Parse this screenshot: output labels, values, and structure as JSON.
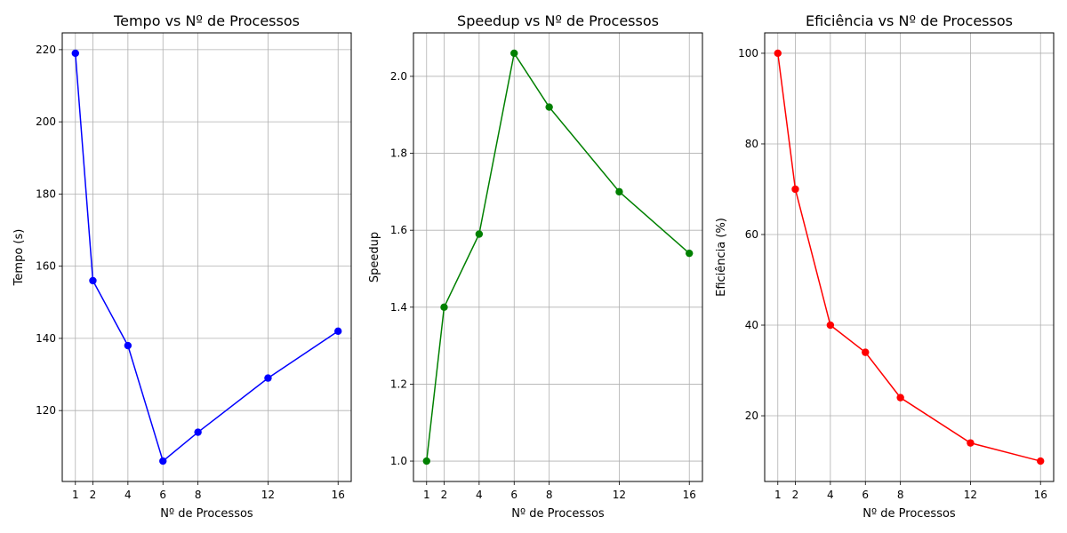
{
  "chart_data": [
    {
      "type": "line",
      "title": "Tempo vs Nº de Processos",
      "xlabel": "Nº de Processos",
      "ylabel": "Tempo (s)",
      "x": [
        1,
        2,
        4,
        6,
        8,
        12,
        16
      ],
      "x_ticks": [
        1,
        2,
        4,
        6,
        8,
        12,
        16
      ],
      "y_ticks": [
        120,
        140,
        160,
        180,
        200,
        220
      ],
      "xlim": [
        0.25,
        16.75
      ],
      "ylim": [
        100.35,
        224.65
      ],
      "grid": true,
      "series": [
        {
          "values": [
            219,
            156,
            138,
            106,
            114,
            129,
            142
          ],
          "color": "#0000ff",
          "marker": "circle"
        }
      ]
    },
    {
      "type": "line",
      "title": "Speedup vs Nº de Processos",
      "xlabel": "Nº de Processos",
      "ylabel": "Speedup",
      "x": [
        1,
        2,
        4,
        6,
        8,
        12,
        16
      ],
      "x_ticks": [
        1,
        2,
        4,
        6,
        8,
        12,
        16
      ],
      "y_ticks": [
        1.0,
        1.2,
        1.4,
        1.6,
        1.8,
        2.0
      ],
      "y_tick_labels": [
        "1.0",
        "1.2",
        "1.4",
        "1.6",
        "1.8",
        "2.0"
      ],
      "xlim": [
        0.25,
        16.75
      ],
      "ylim": [
        0.947,
        2.113
      ],
      "grid": true,
      "series": [
        {
          "values": [
            1.0,
            1.4,
            1.59,
            2.06,
            1.92,
            1.7,
            1.54
          ],
          "color": "#008000",
          "marker": "circle"
        }
      ]
    },
    {
      "type": "line",
      "title": "Eficiência vs Nº de Processos",
      "xlabel": "Nº de Processos",
      "ylabel": "Eficiência (%)",
      "x": [
        1,
        2,
        4,
        6,
        8,
        12,
        16
      ],
      "x_ticks": [
        1,
        2,
        4,
        6,
        8,
        12,
        16
      ],
      "y_ticks": [
        20,
        40,
        60,
        80,
        100
      ],
      "xlim": [
        0.25,
        16.75
      ],
      "ylim": [
        5.5,
        104.5
      ],
      "grid": true,
      "series": [
        {
          "values": [
            100,
            70,
            40,
            34,
            24,
            14,
            10
          ],
          "color": "#ff0000",
          "marker": "circle"
        }
      ]
    }
  ]
}
